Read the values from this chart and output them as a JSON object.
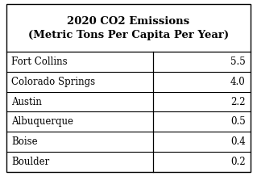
{
  "title_line1": "2020 CO2 Emissions",
  "title_line2": "(Metric Tons Per Capita Per Year)",
  "cities": [
    "Fort Collins",
    "Colorado Springs",
    "Austin",
    "Albuquerque",
    "Boise",
    "Boulder"
  ],
  "values": [
    "5.5",
    "4.0",
    "2.2",
    "0.5",
    "0.4",
    "0.2"
  ],
  "bg_color": "#ffffff",
  "border_color": "#000000",
  "text_color": "#000000",
  "title_fontsize": 9.5,
  "cell_fontsize": 8.5,
  "col_split": 0.595
}
